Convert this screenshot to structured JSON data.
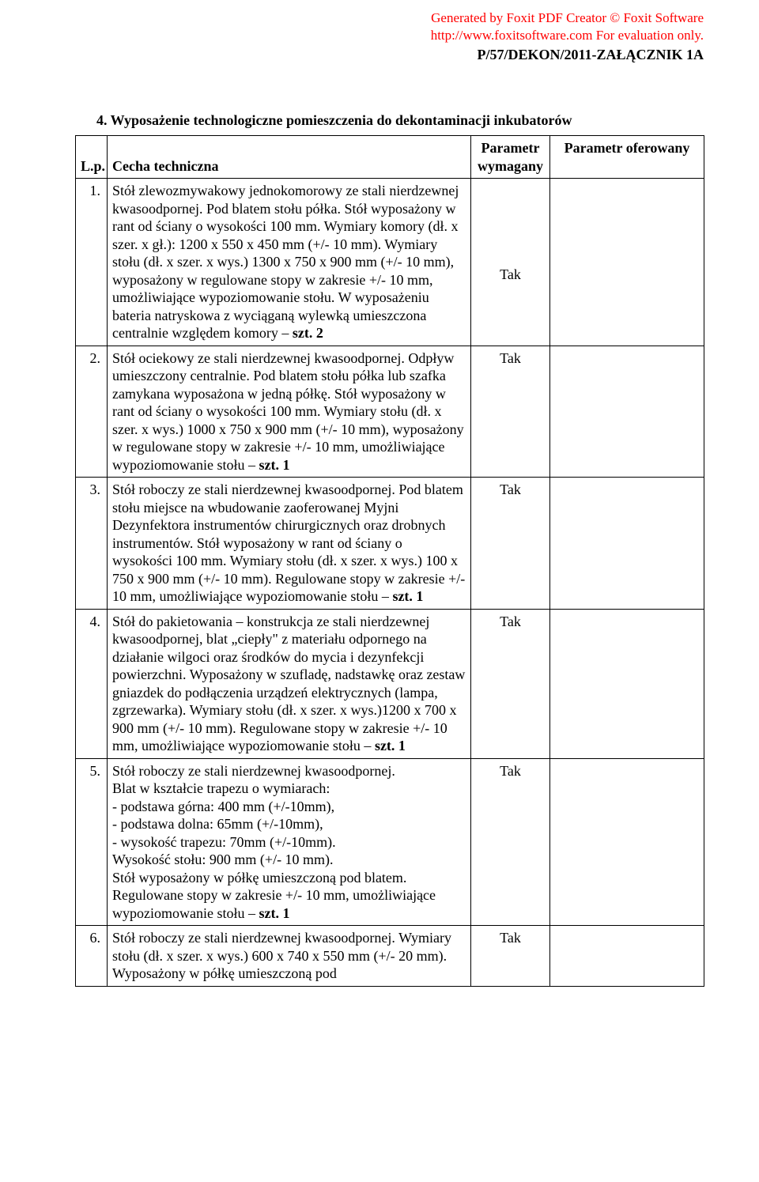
{
  "watermark": {
    "line1": "Generated by Foxit PDF Creator © Foxit Software",
    "line2_prefix": "http://www.foxitsoftware.com",
    "line2_suffix": "   For evaluation only."
  },
  "doc_code": "P/57/DEKON/2011-ZAŁĄCZNIK 1A",
  "section_title": "4. Wyposażenie technologiczne pomieszczenia do dekontaminacji inkubatorów",
  "header": {
    "lp": "L.p.",
    "cecha": "Cecha techniczna",
    "param_req_l1": "Parametr",
    "param_req_l2": "wymagany",
    "param_off": "Parametr oferowany"
  },
  "rows": [
    {
      "num": "1.",
      "text_pre": "Stół zlewozmywakowy jednokomorowy ze stali nierdzewnej kwasoodpornej. Pod blatem stołu półka. Stół wyposażony w rant od ściany o wysokości 100 mm. Wymiary komory (dł. x szer. x gł.): 1200 x 550 x 450 mm (+/- 10 mm). Wymiary stołu (dł. x szer. x wys.) 1300 x 750 x 900 mm (+/- 10 mm), wyposażony w regulowane stopy w zakresie +/- 10 mm, umożliwiające wypoziomowanie stołu. W wyposażeniu bateria natryskowa z wyciąganą wylewką umieszczona centralnie względem komory – ",
      "text_bold": "szt. 2",
      "req": "Tak",
      "req_class": "req"
    },
    {
      "num": "2.",
      "text_pre": "Stół ociekowy ze stali nierdzewnej kwasoodpornej. Odpływ umieszczony centralnie. Pod blatem stołu półka lub szafka zamykana wyposażona w jedną półkę. Stół wyposażony w rant od ściany o wysokości 100 mm. Wymiary stołu (dł. x szer. x wys.) 1000 x 750 x 900 mm (+/- 10 mm), wyposażony w regulowane stopy w zakresie +/- 10 mm, umożliwiające wypoziomowanie stołu – ",
      "text_bold": "szt. 1",
      "req": "Tak",
      "req_class": "req-top"
    },
    {
      "num": "3.",
      "text_pre": "Stół roboczy ze stali nierdzewnej kwasoodpornej. Pod blatem stołu miejsce na wbudowanie zaoferowanej Myjni Dezynfektora instrumentów chirurgicznych oraz drobnych instrumentów. Stół wyposażony w rant od ściany o wysokości 100 mm. Wymiary stołu (dł. x szer. x wys.) 100 x 750 x 900 mm (+/- 10 mm). Regulowane stopy w zakresie +/- 10 mm, umożliwiające wypoziomowanie stołu – ",
      "text_bold": "szt. 1",
      "req": "Tak",
      "req_class": "req-top"
    },
    {
      "num": "4.",
      "text_pre": "Stół do pakietowania – konstrukcja ze stali nierdzewnej kwasoodpornej, blat „ciepły\" z materiału odpornego na działanie wilgoci oraz środków do mycia i dezynfekcji powierzchni. Wyposażony w szufladę, nadstawkę oraz zestaw gniazdek do podłączenia urządzeń elektrycznych (lampa, zgrzewarka). Wymiary stołu (dł. x szer. x wys.)1200 x 700 x 900 mm (+/- 10 mm). Regulowane stopy w zakresie +/- 10 mm, umożliwiające wypoziomowanie stołu – ",
      "text_bold": "szt. 1",
      "req": "Tak",
      "req_class": "req-top"
    },
    {
      "num": "5.",
      "text_pre": "Stół roboczy ze stali nierdzewnej kwasoodpornej.\nBlat w kształcie trapezu o wymiarach:\n- podstawa górna: 400 mm (+/-10mm),\n- podstawa dolna: 65mm (+/-10mm),\n- wysokość trapezu: 70mm (+/-10mm).\nWysokość stołu: 900 mm (+/- 10 mm).\nStół wyposażony w półkę umieszczoną pod blatem. Regulowane stopy w zakresie +/- 10 mm, umożliwiające wypoziomowanie stołu – ",
      "text_bold": "szt. 1",
      "req": "Tak",
      "req_class": "req-top"
    },
    {
      "num": "6.",
      "text_pre": "Stół roboczy ze stali nierdzewnej kwasoodpornej. Wymiary stołu (dł. x szer. x wys.) 600 x 740 x 550 mm (+/- 20 mm). Wyposażony w półkę umieszczoną pod",
      "text_bold": "",
      "req": "Tak",
      "req_class": "req-top"
    }
  ]
}
